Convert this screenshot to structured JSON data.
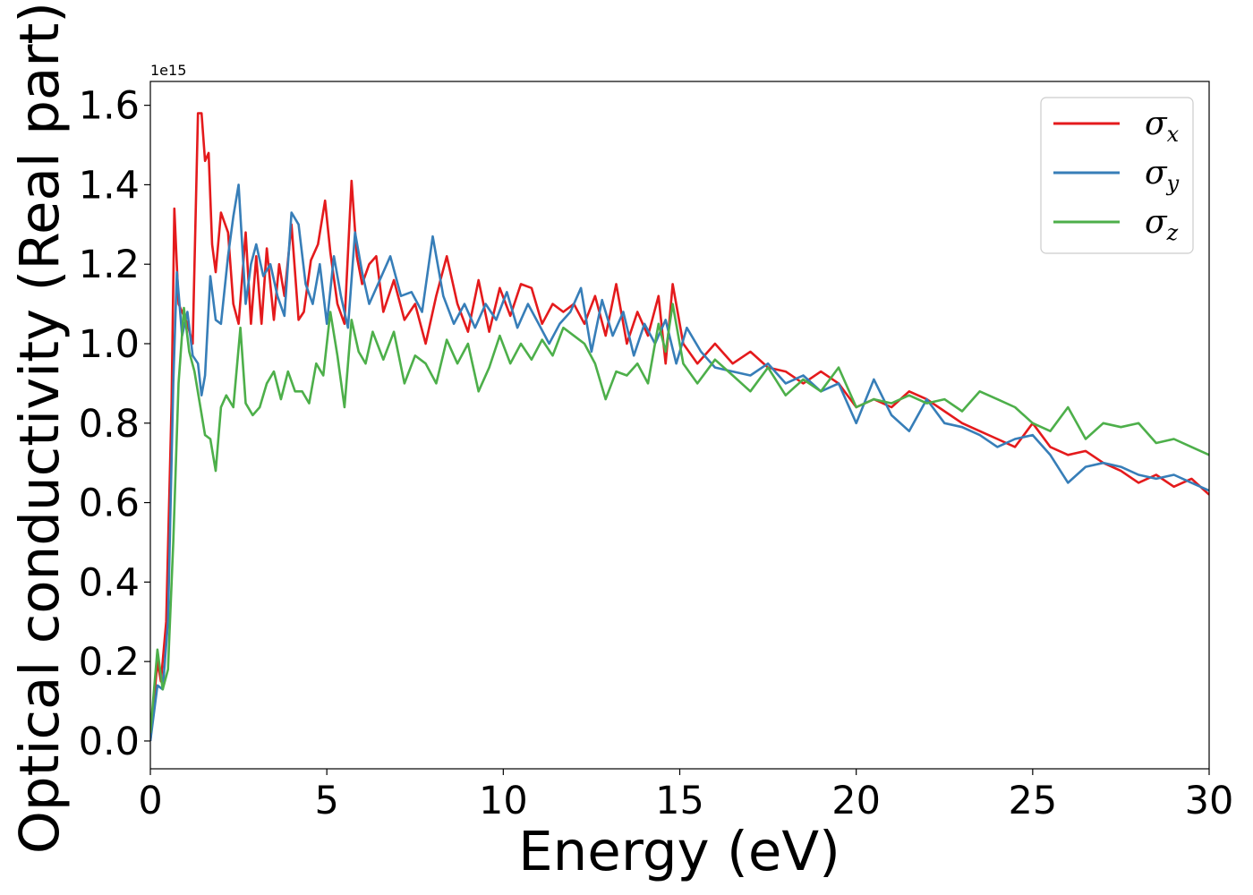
{
  "chart_data": {
    "type": "line",
    "xlabel": "Energy (eV)",
    "ylabel": "Optical conductivity (Real part)",
    "y_offset_label": "1e15",
    "xlim": [
      0,
      30
    ],
    "ylim": [
      -0.07,
      1.66
    ],
    "xticks": [
      0,
      5,
      10,
      15,
      20,
      25,
      30
    ],
    "xtick_labels": [
      "0",
      "5",
      "10",
      "15",
      "20",
      "25",
      "30"
    ],
    "yticks": [
      0.0,
      0.2,
      0.4,
      0.6,
      0.8,
      1.0,
      1.2,
      1.4,
      1.6
    ],
    "ytick_labels": [
      "0.0",
      "0.2",
      "0.4",
      "0.6",
      "0.8",
      "1.0",
      "1.2",
      "1.4",
      "1.6"
    ],
    "grid": false,
    "legend_position": "top-right",
    "series": [
      {
        "name": "σx",
        "symbol": "σ",
        "subscript": "x",
        "color": "#e41a1c",
        "x": [
          0,
          0.2,
          0.3,
          0.45,
          0.6,
          0.68,
          0.8,
          0.9,
          1.05,
          1.2,
          1.35,
          1.45,
          1.55,
          1.65,
          1.75,
          1.85,
          2.0,
          2.2,
          2.35,
          2.5,
          2.7,
          2.85,
          3.0,
          3.15,
          3.3,
          3.5,
          3.65,
          3.8,
          4.0,
          4.2,
          4.35,
          4.55,
          4.75,
          4.95,
          5.1,
          5.3,
          5.5,
          5.7,
          5.85,
          6.0,
          6.2,
          6.4,
          6.6,
          6.9,
          7.2,
          7.5,
          7.8,
          8.1,
          8.4,
          8.7,
          9.0,
          9.3,
          9.6,
          9.9,
          10.2,
          10.5,
          10.8,
          11.1,
          11.4,
          11.7,
          12.0,
          12.3,
          12.6,
          12.9,
          13.2,
          13.5,
          13.8,
          14.1,
          14.4,
          14.6,
          14.8,
          15.1,
          15.5,
          16.0,
          16.5,
          17.0,
          17.5,
          18.0,
          18.5,
          19.0,
          19.5,
          20.0,
          20.5,
          21.0,
          21.5,
          22.0,
          22.5,
          23.0,
          23.5,
          24.0,
          24.5,
          25.0,
          25.5,
          26.0,
          26.5,
          27.0,
          27.5,
          28.0,
          28.5,
          29.0,
          29.5,
          30.0
        ],
        "values": [
          0.0,
          0.2,
          0.15,
          0.3,
          0.85,
          1.34,
          1.1,
          1.08,
          1.05,
          1.0,
          1.58,
          1.58,
          1.46,
          1.48,
          1.25,
          1.18,
          1.33,
          1.28,
          1.1,
          1.05,
          1.28,
          1.05,
          1.22,
          1.05,
          1.24,
          1.06,
          1.2,
          1.12,
          1.3,
          1.06,
          1.08,
          1.21,
          1.25,
          1.36,
          1.23,
          1.1,
          1.05,
          1.41,
          1.22,
          1.15,
          1.2,
          1.22,
          1.08,
          1.16,
          1.06,
          1.1,
          1.0,
          1.12,
          1.22,
          1.1,
          1.03,
          1.16,
          1.03,
          1.14,
          1.07,
          1.15,
          1.14,
          1.05,
          1.1,
          1.08,
          1.1,
          1.05,
          1.12,
          1.02,
          1.15,
          1.0,
          1.08,
          1.02,
          1.12,
          0.95,
          1.15,
          1.0,
          0.95,
          1.0,
          0.95,
          0.98,
          0.94,
          0.93,
          0.9,
          0.93,
          0.9,
          0.84,
          0.86,
          0.84,
          0.88,
          0.86,
          0.83,
          0.8,
          0.78,
          0.76,
          0.74,
          0.8,
          0.74,
          0.72,
          0.73,
          0.7,
          0.68,
          0.65,
          0.67,
          0.64,
          0.66,
          0.62
        ]
      },
      {
        "name": "σy",
        "symbol": "σ",
        "subscript": "y",
        "color": "#377eb8",
        "x": [
          0,
          0.2,
          0.35,
          0.5,
          0.65,
          0.75,
          0.9,
          1.05,
          1.2,
          1.35,
          1.45,
          1.55,
          1.7,
          1.85,
          2.0,
          2.2,
          2.35,
          2.5,
          2.7,
          2.85,
          3.0,
          3.2,
          3.4,
          3.6,
          3.8,
          4.0,
          4.2,
          4.4,
          4.6,
          4.8,
          5.0,
          5.2,
          5.4,
          5.6,
          5.8,
          6.0,
          6.2,
          6.5,
          6.8,
          7.1,
          7.4,
          7.7,
          8.0,
          8.3,
          8.6,
          8.9,
          9.2,
          9.5,
          9.8,
          10.1,
          10.4,
          10.7,
          11.0,
          11.3,
          11.6,
          11.9,
          12.2,
          12.5,
          12.8,
          13.1,
          13.4,
          13.7,
          14.0,
          14.3,
          14.6,
          14.9,
          15.2,
          15.6,
          16.0,
          16.5,
          17.0,
          17.5,
          18.0,
          18.5,
          19.0,
          19.5,
          20.0,
          20.5,
          21.0,
          21.5,
          22.0,
          22.5,
          23.0,
          23.5,
          24.0,
          24.5,
          25.0,
          25.5,
          26.0,
          26.5,
          27.0,
          27.5,
          28.0,
          28.5,
          29.0,
          29.5,
          30.0
        ],
        "values": [
          0.0,
          0.14,
          0.13,
          0.3,
          0.9,
          1.18,
          1.02,
          1.08,
          0.97,
          0.95,
          0.87,
          0.92,
          1.17,
          1.06,
          1.05,
          1.22,
          1.32,
          1.4,
          1.1,
          1.2,
          1.25,
          1.17,
          1.2,
          1.12,
          1.07,
          1.33,
          1.3,
          1.15,
          1.1,
          1.2,
          1.05,
          1.22,
          1.12,
          1.04,
          1.28,
          1.18,
          1.1,
          1.16,
          1.22,
          1.12,
          1.13,
          1.08,
          1.27,
          1.12,
          1.05,
          1.1,
          1.04,
          1.1,
          1.06,
          1.13,
          1.04,
          1.1,
          1.05,
          1.0,
          1.05,
          1.08,
          1.14,
          0.98,
          1.11,
          1.02,
          1.08,
          0.97,
          1.05,
          1.0,
          1.06,
          0.95,
          1.04,
          0.98,
          0.94,
          0.93,
          0.92,
          0.95,
          0.9,
          0.92,
          0.88,
          0.9,
          0.8,
          0.91,
          0.82,
          0.78,
          0.86,
          0.8,
          0.79,
          0.77,
          0.74,
          0.76,
          0.77,
          0.72,
          0.65,
          0.69,
          0.7,
          0.69,
          0.67,
          0.66,
          0.67,
          0.65,
          0.63
        ]
      },
      {
        "name": "σz",
        "symbol": "σ",
        "subscript": "z",
        "color": "#4daf4a",
        "x": [
          0,
          0.2,
          0.35,
          0.5,
          0.65,
          0.8,
          0.95,
          1.1,
          1.25,
          1.4,
          1.55,
          1.7,
          1.85,
          2.0,
          2.15,
          2.35,
          2.55,
          2.7,
          2.9,
          3.1,
          3.3,
          3.5,
          3.7,
          3.9,
          4.1,
          4.3,
          4.5,
          4.7,
          4.9,
          5.1,
          5.3,
          5.5,
          5.7,
          5.9,
          6.1,
          6.3,
          6.6,
          6.9,
          7.2,
          7.5,
          7.8,
          8.1,
          8.4,
          8.7,
          9.0,
          9.3,
          9.6,
          9.9,
          10.2,
          10.5,
          10.8,
          11.1,
          11.4,
          11.7,
          12.0,
          12.3,
          12.6,
          12.9,
          13.2,
          13.5,
          13.8,
          14.1,
          14.4,
          14.6,
          14.8,
          15.1,
          15.5,
          16.0,
          16.5,
          17.0,
          17.5,
          18.0,
          18.5,
          19.0,
          19.5,
          20.0,
          20.5,
          21.0,
          21.5,
          22.0,
          22.5,
          23.0,
          23.5,
          24.0,
          24.5,
          25.0,
          25.5,
          26.0,
          26.5,
          27.0,
          27.5,
          28.0,
          28.5,
          29.0,
          29.5,
          30.0
        ],
        "values": [
          0.02,
          0.23,
          0.13,
          0.18,
          0.5,
          0.9,
          1.09,
          0.98,
          0.93,
          0.85,
          0.77,
          0.76,
          0.68,
          0.84,
          0.87,
          0.84,
          1.04,
          0.85,
          0.82,
          0.84,
          0.9,
          0.93,
          0.86,
          0.93,
          0.88,
          0.88,
          0.85,
          0.95,
          0.92,
          1.08,
          0.97,
          0.84,
          1.06,
          0.98,
          0.95,
          1.03,
          0.96,
          1.03,
          0.9,
          0.97,
          0.95,
          0.9,
          1.01,
          0.95,
          1.0,
          0.88,
          0.94,
          1.02,
          0.95,
          1.0,
          0.96,
          1.01,
          0.97,
          1.04,
          1.02,
          1.0,
          0.95,
          0.86,
          0.93,
          0.92,
          0.95,
          0.9,
          1.05,
          0.98,
          1.1,
          0.95,
          0.9,
          0.96,
          0.92,
          0.88,
          0.94,
          0.87,
          0.91,
          0.88,
          0.94,
          0.84,
          0.86,
          0.85,
          0.87,
          0.85,
          0.86,
          0.83,
          0.88,
          0.86,
          0.84,
          0.8,
          0.78,
          0.84,
          0.76,
          0.8,
          0.79,
          0.8,
          0.75,
          0.76,
          0.74,
          0.72
        ]
      }
    ]
  }
}
